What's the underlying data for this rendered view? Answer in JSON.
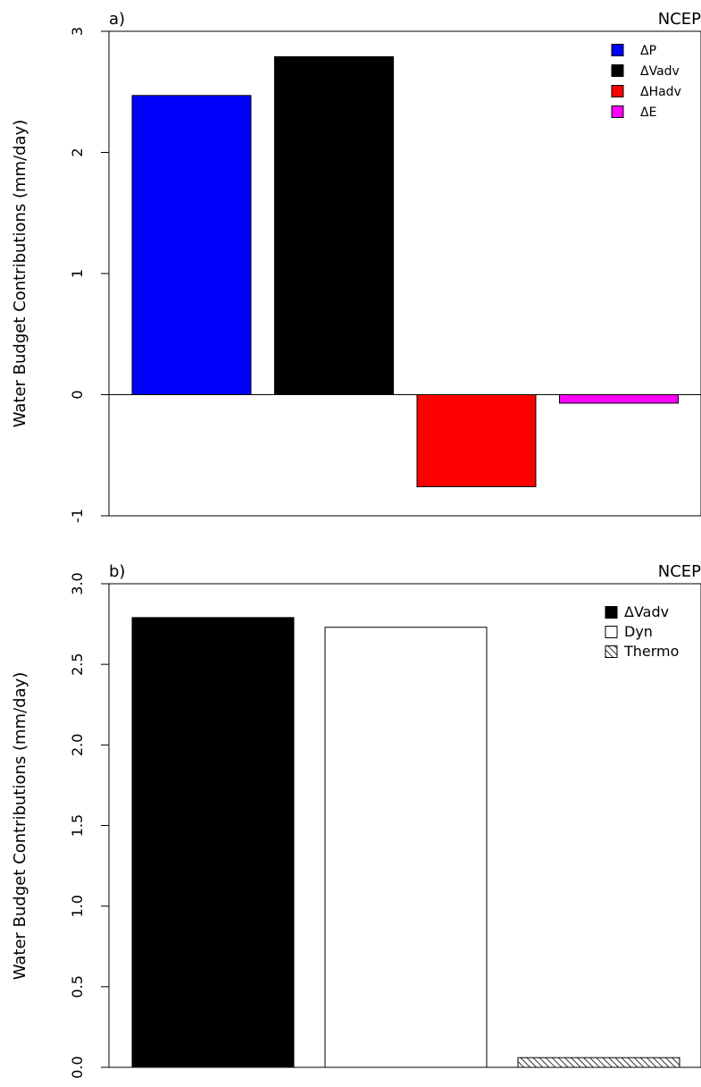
{
  "chart_data": [
    {
      "type": "bar",
      "panel_label": "a)",
      "source": "NCEP",
      "ylabel": "Water Budget Contributions (mm/day)",
      "xlabel": "",
      "ylim": [
        -1,
        3
      ],
      "yticks": [
        "-1",
        "0",
        "1",
        "2",
        "3"
      ],
      "ytick_values": [
        -1,
        0,
        1,
        2,
        3
      ],
      "legend_position": "top-right",
      "zero_line": true,
      "bars": [
        {
          "name": "ΔP",
          "value": 2.47,
          "color": "#0000ff",
          "fill": "solid"
        },
        {
          "name": "ΔVadv",
          "value": 2.79,
          "color": "#000000",
          "fill": "solid"
        },
        {
          "name": "ΔHadv",
          "value": -0.76,
          "color": "#ff0000",
          "fill": "solid"
        },
        {
          "name": "ΔE",
          "value": -0.07,
          "color": "#ff00ff",
          "fill": "solid"
        }
      ]
    },
    {
      "type": "bar",
      "panel_label": "b)",
      "source": "NCEP",
      "ylabel": "Water Budget Contributions (mm/day)",
      "xlabel": "",
      "ylim": [
        0,
        3
      ],
      "yticks": [
        "0.0",
        "0.5",
        "1.0",
        "1.5",
        "2.0",
        "2.5",
        "3.0"
      ],
      "ytick_values": [
        0,
        0.5,
        1,
        1.5,
        2,
        2.5,
        3
      ],
      "legend_position": "top-right",
      "zero_line": false,
      "bars": [
        {
          "name": "ΔVadv",
          "value": 2.79,
          "color": "#000000",
          "fill": "solid"
        },
        {
          "name": "Dyn",
          "value": 2.73,
          "color": "#ffffff",
          "fill": "solid"
        },
        {
          "name": "Thermo",
          "value": 0.06,
          "color": "#ffffff",
          "fill": "hatch"
        }
      ]
    }
  ]
}
